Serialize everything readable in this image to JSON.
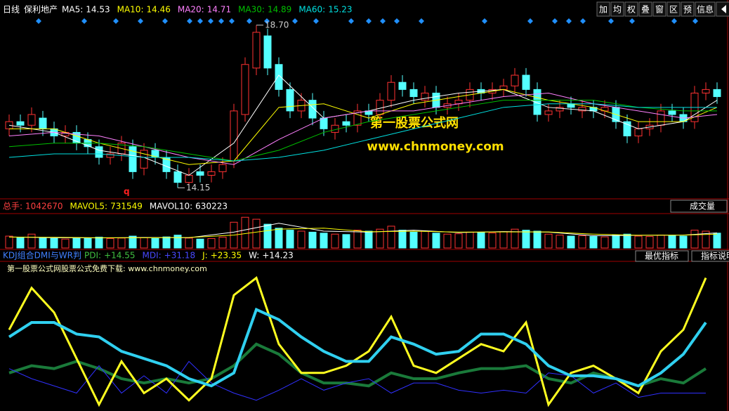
{
  "header": {
    "period": "日线",
    "stock": "保利地产"
  },
  "toolbar": [
    "加",
    "均",
    "权",
    "叠",
    "窗",
    "区",
    "预",
    "信息"
  ],
  "price_panel": {
    "type": "candlestick",
    "ylim": [
      13.9,
      19.05
    ],
    "up_color": "#ff3232",
    "down_color": "#54ffff",
    "marker": "q",
    "open": [
      15.8,
      16.0,
      15.9,
      16.1,
      15.8,
      15.6,
      15.7,
      15.5,
      15.3,
      15.0,
      15.1,
      15.3,
      14.7,
      15.2,
      15.0,
      14.6,
      14.3,
      14.6,
      14.5,
      14.6,
      14.9,
      16.2,
      17.5,
      18.4,
      17.6,
      16.9,
      16.3,
      16.6,
      16.1,
      15.7,
      16.0,
      15.9,
      16.3,
      16.2,
      16.6,
      17.1,
      16.9,
      16.6,
      16.8,
      16.4,
      16.5,
      16.6,
      16.9,
      16.8,
      16.9,
      17.0,
      17.3,
      16.9,
      16.2,
      16.3,
      16.5,
      16.3,
      16.4,
      16.3,
      16.4,
      16.0,
      15.6,
      15.8,
      15.9,
      16.3,
      16.2,
      16.0,
      16.8,
      16.9
    ],
    "high": [
      16.2,
      16.2,
      16.4,
      16.3,
      16.0,
      15.9,
      15.9,
      15.7,
      15.5,
      15.3,
      15.6,
      15.5,
      15.4,
      15.4,
      15.2,
      14.8,
      14.7,
      14.8,
      14.8,
      15.0,
      16.5,
      17.8,
      {
        "value": 18.7,
        "label": "18.70"
      },
      18.6,
      17.8,
      17.1,
      16.8,
      16.8,
      16.3,
      16.1,
      16.2,
      16.5,
      16.5,
      16.8,
      17.3,
      17.3,
      17.1,
      17.0,
      17.0,
      16.7,
      16.8,
      17.1,
      17.1,
      17.1,
      17.2,
      17.5,
      17.5,
      17.1,
      16.5,
      16.6,
      16.7,
      16.6,
      16.6,
      16.6,
      16.6,
      16.2,
      16.0,
      16.1,
      16.5,
      16.5,
      16.4,
      17.0,
      17.1,
      17.1
    ],
    "low": [
      15.6,
      15.7,
      15.7,
      15.6,
      15.4,
      15.4,
      15.2,
      15.1,
      14.8,
      14.8,
      14.9,
      14.4,
      14.5,
      14.8,
      14.4,
      14.15,
      14.2,
      14.3,
      14.3,
      14.4,
      14.7,
      16.0,
      17.3,
      17.3,
      16.7,
      16.1,
      16.1,
      15.9,
      15.6,
      15.5,
      15.7,
      15.7,
      16.0,
      16.0,
      16.4,
      16.7,
      16.5,
      16.4,
      16.2,
      16.2,
      16.3,
      16.4,
      16.6,
      16.6,
      16.7,
      16.8,
      16.7,
      16.0,
      16.0,
      16.1,
      16.2,
      16.1,
      16.1,
      16.1,
      15.8,
      15.4,
      15.4,
      15.6,
      15.7,
      16.0,
      15.8,
      15.8,
      16.6,
      16.5
    ],
    "close": [
      16.0,
      15.9,
      16.2,
      15.8,
      15.6,
      15.7,
      15.4,
      15.3,
      15.0,
      15.1,
      15.4,
      14.6,
      15.2,
      15.0,
      14.6,
      14.3,
      14.5,
      14.5,
      14.6,
      14.8,
      16.3,
      17.6,
      18.5,
      17.5,
      16.9,
      16.3,
      16.6,
      16.1,
      15.8,
      15.9,
      15.9,
      16.3,
      16.2,
      16.6,
      17.1,
      16.9,
      16.7,
      16.8,
      16.4,
      16.5,
      16.6,
      16.9,
      16.8,
      16.9,
      17.0,
      17.3,
      16.9,
      16.2,
      16.3,
      16.4,
      16.4,
      16.4,
      16.3,
      16.4,
      16.0,
      15.6,
      15.8,
      15.9,
      16.3,
      16.2,
      16.0,
      16.8,
      16.9,
      16.7
    ],
    "ma_x": [
      0,
      4,
      8,
      12,
      16,
      20,
      24,
      28,
      32,
      36,
      40,
      44,
      48,
      52,
      56,
      60,
      63
    ],
    "ma": [
      {
        "name": "MA5:",
        "value": 14.53,
        "color": "#ffffff",
        "values": [
          15.9,
          15.7,
          15.2,
          15.0,
          14.5,
          15.4,
          17.3,
          16.1,
          16.3,
          16.6,
          16.8,
          16.9,
          16.4,
          16.3,
          15.8,
          16.0,
          16.6
        ]
      },
      {
        "name": "MA10:",
        "value": 14.46,
        "color": "#ffff00",
        "values": [
          15.8,
          15.8,
          15.4,
          15.1,
          14.8,
          14.9,
          16.4,
          16.5,
          16.1,
          16.5,
          16.7,
          16.9,
          16.6,
          16.4,
          16.0,
          16.0,
          16.4
        ]
      },
      {
        "name": "MA20:",
        "value": 14.71,
        "color": "#ff80ff",
        "values": [
          15.6,
          15.7,
          15.6,
          15.3,
          15.0,
          14.8,
          15.5,
          16.1,
          16.3,
          16.3,
          16.5,
          16.7,
          16.8,
          16.5,
          16.3,
          16.1,
          16.2
        ]
      },
      {
        "name": "MA30:",
        "value": 14.89,
        "color": "#00c000",
        "values": [
          15.3,
          15.4,
          15.4,
          15.3,
          15.1,
          14.9,
          15.2,
          15.7,
          16.0,
          16.2,
          16.4,
          16.6,
          16.6,
          16.6,
          16.4,
          16.3,
          16.3
        ]
      },
      {
        "name": "MA60:",
        "value": 15.23,
        "color": "#00e0e0",
        "values": [
          15.0,
          15.1,
          15.1,
          15.0,
          15.0,
          14.9,
          15.0,
          15.2,
          15.5,
          15.8,
          16.1,
          16.4,
          16.5,
          16.5,
          16.4,
          16.4,
          16.4
        ]
      }
    ]
  },
  "volume_panel": {
    "type": "bar",
    "ylim": [
      0,
      1700000
    ],
    "selector": "成交量",
    "values": [
      600000,
      550000,
      700000,
      500000,
      480000,
      450000,
      520000,
      500000,
      550000,
      480000,
      500000,
      600000,
      520000,
      480000,
      560000,
      650000,
      500000,
      450000,
      480000,
      550000,
      1300000,
      1550000,
      1450000,
      1200000,
      1000000,
      900000,
      850000,
      800000,
      750000,
      700000,
      680000,
      900000,
      850000,
      950000,
      1100000,
      900000,
      800000,
      850000,
      750000,
      700000,
      720000,
      800000,
      780000,
      760000,
      820000,
      950000,
      900000,
      850000,
      700000,
      650000,
      600000,
      620000,
      580000,
      560000,
      650000,
      700000,
      600000,
      580000,
      650000,
      620000,
      600000,
      900000,
      850000,
      750000
    ],
    "legend": [
      {
        "name": "总手:",
        "value": 1042670,
        "color": "#ff4040"
      },
      {
        "name": "MAVOL5:",
        "value": 731549,
        "color": "#ffff00",
        "line_color": "#ffffff",
        "values": [
          560000,
          520000,
          510000,
          530000,
          520000,
          800000,
          1250000,
          850000,
          800000,
          900000,
          780000,
          830000,
          800000,
          620000,
          640000,
          650000,
          760000
        ]
      },
      {
        "name": "MAVOL10:",
        "value": 630223,
        "color": "#ffffff",
        "line_color": "#ffff00",
        "values": [
          550000,
          540000,
          520000,
          520000,
          530000,
          650000,
          950000,
          1000000,
          820000,
          850000,
          800000,
          810000,
          810000,
          700000,
          640000,
          650000,
          700000
        ]
      }
    ]
  },
  "indicator_panel": {
    "type": "line",
    "title": "KDJ组合DMI与WR判",
    "note": "第一股票公式网股票公式免费下载: www.chnmoney.com",
    "buttons": [
      "最优指标",
      "指标说明"
    ],
    "ylim": [
      0,
      100
    ],
    "x": [
      0,
      2,
      4,
      6,
      8,
      10,
      12,
      14,
      16,
      18,
      20,
      22,
      24,
      26,
      28,
      30,
      32,
      34,
      36,
      38,
      40,
      42,
      44,
      46,
      48,
      50,
      52,
      54,
      56,
      58,
      60,
      62
    ],
    "series": [
      {
        "name": "PDI:",
        "value": {
          "value": 14.55,
          "label": "+14.55"
        },
        "color": "#40c040",
        "line_color": "#1a7a3a",
        "width": 4,
        "values": [
          24,
          29,
          27,
          32,
          27,
          20,
          17,
          20,
          17,
          20,
          29,
          44,
          37,
          24,
          17,
          17,
          15,
          24,
          20,
          20,
          24,
          27,
          27,
          29,
          20,
          17,
          24,
          20,
          15,
          20,
          17,
          27
        ]
      },
      {
        "name": "MDI:",
        "value": {
          "value": 31.18,
          "label": "+31.18"
        },
        "color": "#4848ff",
        "line_color": "#3030ff",
        "width": 1,
        "values": [
          27,
          20,
          15,
          10,
          29,
          10,
          22,
          10,
          32,
          17,
          10,
          5,
          12,
          20,
          12,
          17,
          20,
          10,
          17,
          17,
          12,
          10,
          12,
          10,
          24,
          22,
          10,
          17,
          7,
          10,
          10,
          10
        ]
      },
      {
        "name": "J:",
        "value": {
          "value": 23.35,
          "label": "+23.35"
        },
        "color": "#ffff00",
        "line_color": "#ffff20",
        "width": 3,
        "values": [
          54,
          83,
          66,
          34,
          2,
          32,
          10,
          20,
          5,
          20,
          78,
          90,
          44,
          24,
          24,
          29,
          39,
          63,
          29,
          24,
          34,
          44,
          39,
          59,
          2,
          24,
          29,
          20,
          10,
          39,
          54,
          90
        ]
      },
      {
        "name": "W:",
        "value": {
          "value": 14.23,
          "label": "+14.23"
        },
        "color": "#ffffff",
        "line_color": "#30d0f0",
        "width": 4,
        "values": [
          49,
          59,
          59,
          51,
          49,
          39,
          34,
          29,
          20,
          15,
          24,
          68,
          61,
          49,
          39,
          32,
          32,
          49,
          44,
          37,
          39,
          51,
          51,
          44,
          29,
          22,
          22,
          20,
          15,
          24,
          37,
          59
        ]
      }
    ]
  },
  "watermark": {
    "name": "第一股票公式网",
    "url": "www.chnmoney.com"
  }
}
